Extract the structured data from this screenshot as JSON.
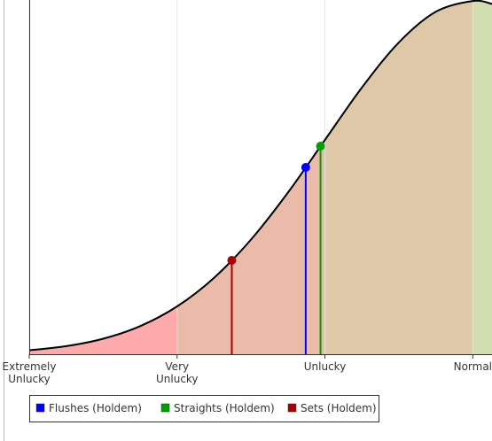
{
  "chart_data": {
    "type": "density",
    "xlim": [
      -3,
      0.13
    ],
    "ylim": [
      0,
      0.4
    ],
    "xticks": [
      {
        "value": -3,
        "label": "Extremely Unlucky"
      },
      {
        "value": -2,
        "label": "Very Unlucky"
      },
      {
        "value": -1,
        "label": "Unlucky"
      },
      {
        "value": 0,
        "label": "Normal"
      }
    ],
    "bands": [
      {
        "from": -3,
        "to": -2,
        "color": "#ffaaaa"
      },
      {
        "from": -2,
        "to": -1,
        "color": "#eabba8"
      },
      {
        "from": -1,
        "to": 0,
        "color": "#dfc8a8"
      },
      {
        "from": 0,
        "to": 0.13,
        "color": "#d0deb0"
      }
    ],
    "curve": {
      "x": [
        -3,
        -2.75,
        -2.5,
        -2.25,
        -2,
        -1.75,
        -1.5,
        -1.25,
        -1,
        -0.75,
        -0.5,
        -0.25,
        0,
        0.13
      ],
      "y": [
        0.0044,
        0.0091,
        0.0175,
        0.0317,
        0.054,
        0.0863,
        0.1295,
        0.1826,
        0.242,
        0.3011,
        0.3521,
        0.3867,
        0.3989,
        0.3956
      ]
    },
    "series": [
      {
        "name": "Flushes (Holdem)",
        "color": "#0000ff",
        "x": [
          -1.13
        ],
        "values": [
          0.211
        ]
      },
      {
        "name": "Straights (Holdem)",
        "color": "#00a000",
        "x": [
          -1.03
        ],
        "values": [
          0.235
        ]
      },
      {
        "name": "Sets (Holdem)",
        "color": "#aa0000",
        "x": [
          -1.63
        ],
        "values": [
          0.106
        ]
      }
    ]
  }
}
